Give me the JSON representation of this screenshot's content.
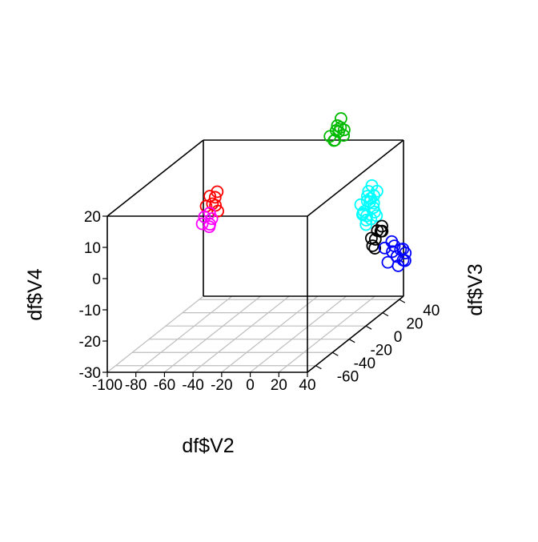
{
  "chart_data": {
    "type": "scatter3d",
    "title": "",
    "xlabel": "df$V2",
    "ylabel": "df$V3",
    "zlabel": "df$V4",
    "xlim": [
      -100,
      40
    ],
    "ylim": [
      -70,
      45
    ],
    "zlim": [
      -30,
      20
    ],
    "x_ticks": [
      -100,
      -80,
      -60,
      -40,
      -20,
      0,
      20,
      40
    ],
    "y_ticks": [
      -60,
      -40,
      -20,
      0,
      20,
      40
    ],
    "z_ticks": [
      -30,
      -20,
      -10,
      0,
      10,
      20
    ],
    "x_tick_labels": [
      "-100",
      "-80",
      "-60",
      "-40",
      "-20",
      "0",
      "20",
      "40"
    ],
    "y_tick_labels": [
      "-60",
      "-40",
      "-20",
      "0",
      "20",
      "40"
    ],
    "z_tick_labels": [
      "-30",
      "-20",
      "-10",
      "0",
      "10",
      "20"
    ],
    "grid_on_floor": true,
    "legend": "none",
    "marker": "open-circle",
    "groups": [
      {
        "color": "#ff0000",
        "points": [
          [
            -68,
            -2,
            12
          ],
          [
            -65,
            -4,
            10
          ],
          [
            -67,
            3,
            8
          ],
          [
            -64,
            0,
            13
          ],
          [
            -70,
            -3,
            9
          ],
          [
            -66,
            1,
            11
          ],
          [
            -63,
            -1,
            7
          ]
        ]
      },
      {
        "color": "#ff00ff",
        "points": [
          [
            -70,
            -5,
            6
          ],
          [
            -68,
            -2,
            3
          ],
          [
            -66,
            -3,
            5
          ],
          [
            -71,
            -6,
            4
          ],
          [
            -67,
            -4,
            7
          ],
          [
            -69,
            -1,
            2
          ]
        ]
      },
      {
        "color": "#00bb00",
        "points": [
          [
            -10,
            50,
            22
          ],
          [
            -8,
            48,
            24
          ],
          [
            -6,
            52,
            20
          ],
          [
            -12,
            46,
            21
          ],
          [
            -7,
            50,
            23
          ],
          [
            -9,
            54,
            25
          ],
          [
            -11,
            49,
            19
          ],
          [
            -5,
            51,
            22
          ],
          [
            -8,
            45,
            20
          ],
          [
            -10,
            53,
            21
          ]
        ]
      },
      {
        "color": "#00ffff",
        "points": [
          [
            35,
            5,
            5
          ],
          [
            38,
            8,
            8
          ],
          [
            36,
            10,
            11
          ],
          [
            40,
            6,
            3
          ],
          [
            34,
            12,
            9
          ],
          [
            37,
            3,
            6
          ],
          [
            39,
            11,
            7
          ],
          [
            41,
            4,
            10
          ],
          [
            33,
            8,
            4
          ],
          [
            36,
            14,
            12
          ],
          [
            42,
            7,
            5
          ],
          [
            35,
            9,
            2
          ],
          [
            38,
            13,
            9
          ],
          [
            40,
            9,
            6
          ],
          [
            37,
            6,
            4
          ],
          [
            34,
            4,
            8
          ],
          [
            39,
            15,
            10
          ],
          [
            41,
            11,
            3
          ],
          [
            36,
            7,
            1
          ],
          [
            38,
            5,
            9
          ]
        ]
      },
      {
        "color": "#000000",
        "points": [
          [
            38,
            10,
            -4
          ],
          [
            41,
            12,
            -2
          ],
          [
            43,
            14,
            -1
          ],
          [
            40,
            8,
            -6
          ],
          [
            42,
            16,
            -3
          ],
          [
            39,
            13,
            -5
          ],
          [
            44,
            11,
            -2
          ],
          [
            41,
            9,
            -7
          ]
        ]
      },
      {
        "color": "#0000ff",
        "points": [
          [
            45,
            14,
            -8
          ],
          [
            48,
            18,
            -10
          ],
          [
            50,
            20,
            -12
          ],
          [
            47,
            22,
            -9
          ],
          [
            52,
            24,
            -14
          ],
          [
            49,
            26,
            -11
          ],
          [
            46,
            16,
            -13
          ],
          [
            51,
            28,
            -15
          ],
          [
            53,
            22,
            -10
          ],
          [
            48,
            25,
            -16
          ],
          [
            50,
            30,
            -13
          ],
          [
            47,
            19,
            -7
          ]
        ]
      }
    ]
  }
}
